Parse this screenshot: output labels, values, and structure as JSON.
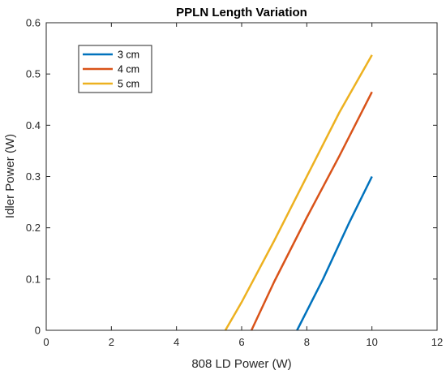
{
  "chart_data": {
    "type": "line",
    "title": "PPLN Length Variation",
    "xlabel": "808 LD Power (W)",
    "ylabel": "Idler Power (W)",
    "xlim": [
      0,
      12
    ],
    "ylim": [
      0,
      0.6
    ],
    "xticks": [
      0,
      2,
      4,
      6,
      8,
      10,
      12
    ],
    "yticks": [
      0,
      0.1,
      0.2,
      0.3,
      0.4,
      0.5,
      0.6
    ],
    "xtick_labels": [
      "0",
      "2",
      "4",
      "6",
      "8",
      "10",
      "12"
    ],
    "ytick_labels": [
      "0",
      "0.1",
      "0.2",
      "0.3",
      "0.4",
      "0.5",
      "0.6"
    ],
    "grid": false,
    "legend_position": "top-left",
    "series": [
      {
        "name": "3 cm",
        "color": "#0072BD",
        "points": [
          [
            7.7,
            0.0
          ],
          [
            8.5,
            0.1
          ],
          [
            9.3,
            0.21
          ],
          [
            10.0,
            0.3
          ]
        ]
      },
      {
        "name": "4 cm",
        "color": "#D95319",
        "points": [
          [
            6.3,
            0.0
          ],
          [
            7.0,
            0.095
          ],
          [
            8.0,
            0.22
          ],
          [
            9.0,
            0.34
          ],
          [
            10.0,
            0.465
          ]
        ]
      },
      {
        "name": "5 cm",
        "color": "#EDB120",
        "points": [
          [
            5.5,
            0.0
          ],
          [
            6.0,
            0.055
          ],
          [
            7.0,
            0.175
          ],
          [
            8.0,
            0.3
          ],
          [
            9.0,
            0.425
          ],
          [
            10.0,
            0.537
          ]
        ]
      }
    ]
  }
}
